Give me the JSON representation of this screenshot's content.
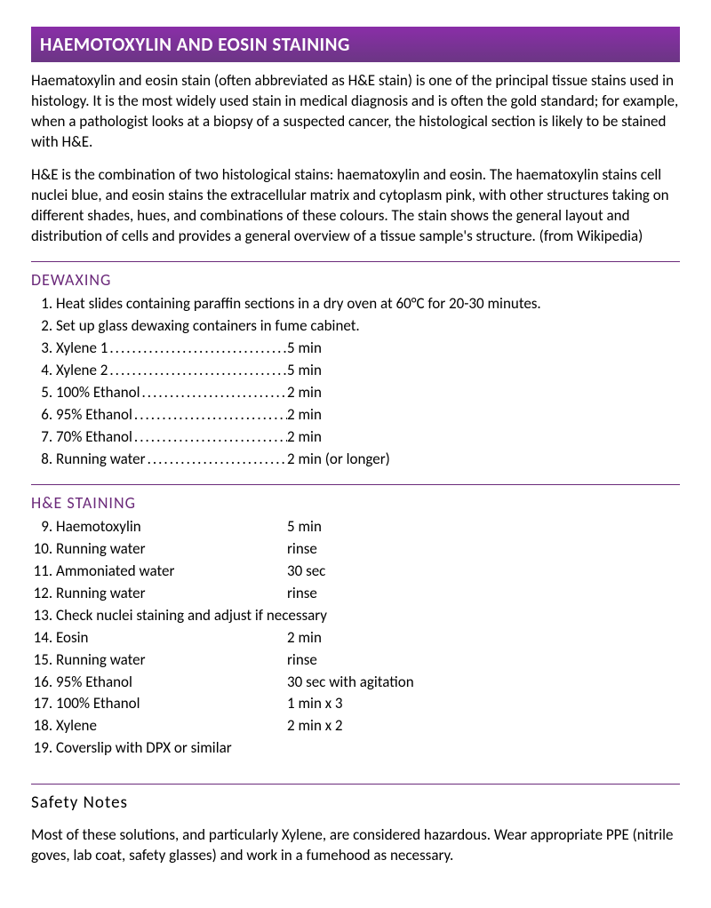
{
  "colors": {
    "accent": "#6b2a7a",
    "title_bg_top": "#8a2ea8",
    "title_bg_bottom": "#6b3684",
    "title_text": "#ffffff",
    "body_text": "#000000",
    "background": "#ffffff"
  },
  "title": "HAEMOTOXYLIN AND EOSIN STAINING",
  "intro": {
    "p1": "Haematoxylin and eosin stain (often abbreviated as H&E stain) is one of the principal tissue stains used in histology. It is the most widely used stain in medical diagnosis and is often the gold standard; for example, when a pathologist looks at a biopsy of a suspected cancer, the histological section is likely to be stained with H&E.",
    "p2": "H&E is the combination of two histological stains: haematoxylin and eosin. The haematoxylin stains cell nuclei blue, and eosin stains the extracellular matrix and cytoplasm pink, with other structures taking on different shades, hues, and combinations of these colours. The stain shows the general layout and distribution of cells and provides a general overview of a tissue sample's structure. (from Wikipedia)"
  },
  "dewaxing": {
    "heading": "DEWAXING",
    "steps": [
      {
        "label": "Heat slides containing paraffin sections in a dry oven at 60°C for 20-30 minutes.",
        "time": "",
        "dotted": false
      },
      {
        "label": "Set up glass dewaxing containers in fume cabinet.",
        "time": "",
        "dotted": false
      },
      {
        "label": "Xylene 1",
        "time": "5 min",
        "dotted": true
      },
      {
        "label": "Xylene 2",
        "time": "5 min",
        "dotted": true
      },
      {
        "label": "100% Ethanol",
        "time": "2 min",
        "dotted": true
      },
      {
        "label": "95% Ethanol",
        "time": "2 min",
        "dotted": true
      },
      {
        "label": "70% Ethanol",
        "time": "2 min",
        "dotted": true
      },
      {
        "label": "Running water",
        "time": "2 min (or longer)",
        "dotted": true
      }
    ]
  },
  "he_staining": {
    "heading": "H&E STAINING",
    "start": 9,
    "steps": [
      {
        "label": "Haemotoxylin",
        "time": "5 min"
      },
      {
        "label": "Running water",
        "time": "rinse"
      },
      {
        "label": "Ammoniated water",
        "time": "30 sec"
      },
      {
        "label": "Running water",
        "time": "rinse"
      },
      {
        "label": "Check nuclei staining and adjust if necessary",
        "time": ""
      },
      {
        "label": "Eosin",
        "time": "2 min"
      },
      {
        "label": "Running water",
        "time": "rinse"
      },
      {
        "label": "95% Ethanol",
        "time": "30 sec with agitation"
      },
      {
        "label": "100% Ethanol",
        "time": "1 min x 3"
      },
      {
        "label": "Xylene",
        "time": "2 min x 2"
      },
      {
        "label": "Coverslip with DPX or similar",
        "time": ""
      }
    ]
  },
  "safety": {
    "heading": "Safety Notes",
    "body": "Most of these solutions, and particularly Xylene, are considered hazardous. Wear appropriate PPE (nitrile goves, lab coat, safety glasses) and work in a fumehood as necessary."
  }
}
